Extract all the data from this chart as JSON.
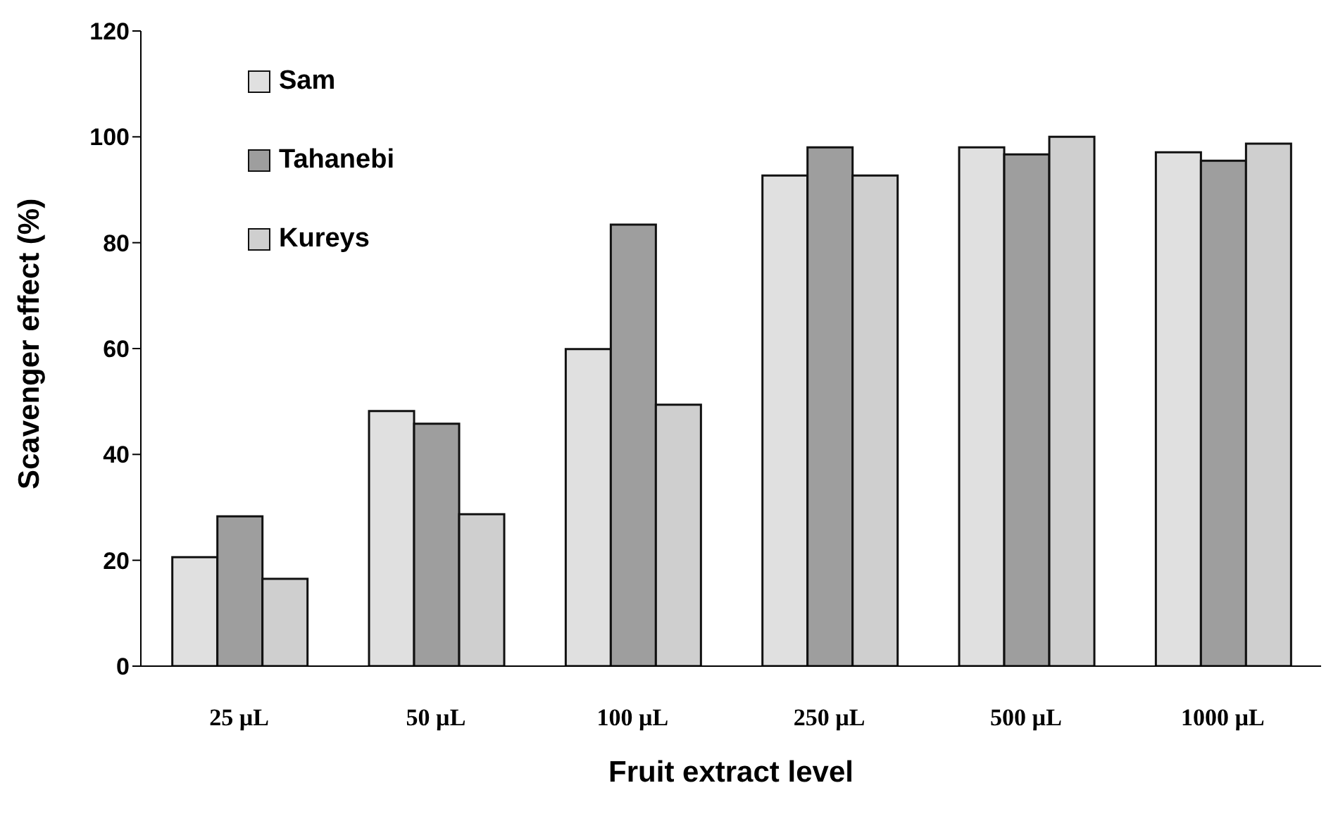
{
  "chart_data": {
    "type": "bar",
    "xlabel": "Fruit extract level",
    "ylabel": "Scavenger effect (%)",
    "categories": [
      "25 µL",
      "50 µL",
      "100 µL",
      "250 µL",
      "500 µL",
      "1000 µL"
    ],
    "series": [
      {
        "name": "Sam",
        "color": "#e0e0e0",
        "values": [
          20.6,
          48.2,
          59.9,
          92.7,
          98.0,
          97.1
        ]
      },
      {
        "name": "Tahanebi",
        "color": "#9e9e9e",
        "values": [
          28.3,
          45.8,
          83.4,
          98.0,
          96.7,
          95.5
        ]
      },
      {
        "name": "Kureys",
        "color": "#cfcfcf",
        "values": [
          16.5,
          28.7,
          49.4,
          92.7,
          100,
          98.7
        ]
      }
    ],
    "ylim": [
      0,
      120
    ],
    "yticks": [
      0,
      20,
      40,
      60,
      80,
      100,
      120
    ],
    "grid": false,
    "legend": "top left"
  }
}
